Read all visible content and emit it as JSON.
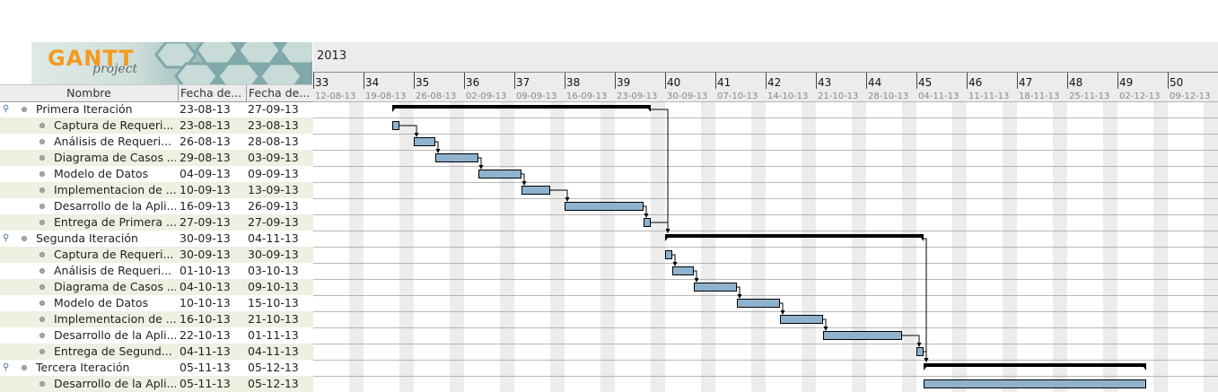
{
  "logo": {
    "text_main": "GANTT",
    "text_sub": "project"
  },
  "timeline": {
    "year": "2013",
    "weeks": [
      {
        "num": "33",
        "date": "12-08-13"
      },
      {
        "num": "34",
        "date": "19-08-13"
      },
      {
        "num": "35",
        "date": "26-08-13"
      },
      {
        "num": "36",
        "date": "02-09-13"
      },
      {
        "num": "37",
        "date": "09-09-13"
      },
      {
        "num": "38",
        "date": "16-09-13"
      },
      {
        "num": "39",
        "date": "23-09-13"
      },
      {
        "num": "40",
        "date": "30-09-13"
      },
      {
        "num": "41",
        "date": "07-10-13"
      },
      {
        "num": "42",
        "date": "14-10-13"
      },
      {
        "num": "43",
        "date": "21-10-13"
      },
      {
        "num": "44",
        "date": "28-10-13"
      },
      {
        "num": "45",
        "date": "04-11-13"
      },
      {
        "num": "46",
        "date": "11-11-13"
      },
      {
        "num": "47",
        "date": "18-11-13"
      },
      {
        "num": "48",
        "date": "25-11-13"
      },
      {
        "num": "49",
        "date": "02-12-13"
      },
      {
        "num": "50",
        "date": "09-12-13"
      }
    ]
  },
  "columns": {
    "name": "Nombre",
    "start": "Fecha de...",
    "end": "Fecha de..."
  },
  "tasks": [
    {
      "name": "Primera Iteración",
      "start": "23-08-13",
      "end": "27-09-13",
      "summary": true
    },
    {
      "name": "Captura de Requeri...",
      "start": "23-08-13",
      "end": "23-08-13",
      "summary": false
    },
    {
      "name": "Análisis de Requeri...",
      "start": "26-08-13",
      "end": "28-08-13",
      "summary": false
    },
    {
      "name": "Diagrama de Casos ...",
      "start": "29-08-13",
      "end": "03-09-13",
      "summary": false
    },
    {
      "name": "Modelo de Datos",
      "start": "04-09-13",
      "end": "09-09-13",
      "summary": false
    },
    {
      "name": "Implementacion de ...",
      "start": "10-09-13",
      "end": "13-09-13",
      "summary": false
    },
    {
      "name": "Desarrollo de la Apli...",
      "start": "16-09-13",
      "end": "26-09-13",
      "summary": false
    },
    {
      "name": "Entrega de Primera ...",
      "start": "27-09-13",
      "end": "27-09-13",
      "summary": false
    },
    {
      "name": "Segunda Iteración",
      "start": "30-09-13",
      "end": "04-11-13",
      "summary": true
    },
    {
      "name": "Captura de Requeri...",
      "start": "30-09-13",
      "end": "30-09-13",
      "summary": false
    },
    {
      "name": "Análisis de Requeri...",
      "start": "01-10-13",
      "end": "03-10-13",
      "summary": false
    },
    {
      "name": "Diagrama de Casos ...",
      "start": "04-10-13",
      "end": "09-10-13",
      "summary": false
    },
    {
      "name": "Modelo de Datos",
      "start": "10-10-13",
      "end": "15-10-13",
      "summary": false
    },
    {
      "name": "Implementacion de ...",
      "start": "16-10-13",
      "end": "21-10-13",
      "summary": false
    },
    {
      "name": "Desarrollo de la Apli...",
      "start": "22-10-13",
      "end": "01-11-13",
      "summary": false
    },
    {
      "name": "Entrega de Segund...",
      "start": "04-11-13",
      "end": "04-11-13",
      "summary": false
    },
    {
      "name": "Tercera Iteración",
      "start": "05-11-13",
      "end": "05-12-13",
      "summary": true
    },
    {
      "name": "Desarrollo de la Apli...",
      "start": "05-11-13",
      "end": "05-12-13",
      "summary": false
    }
  ],
  "colors": {
    "task_bar": "#8fb3cf",
    "summary_bar": "#000000",
    "alt_row": "#efefe2",
    "weekend": "#ececec"
  }
}
